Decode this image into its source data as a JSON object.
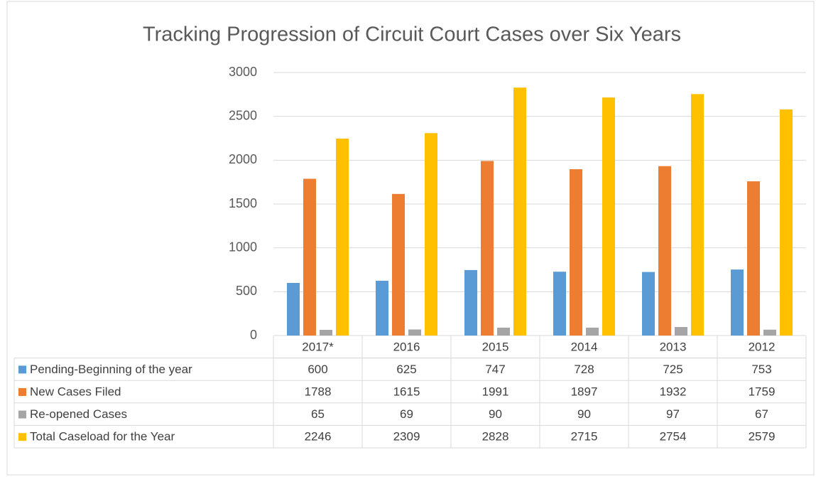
{
  "chart_data": {
    "type": "bar",
    "title": "Tracking Progression of Circuit Court Cases over Six Years",
    "categories": [
      "2017*",
      "2016",
      "2015",
      "2014",
      "2013",
      "2012"
    ],
    "series": [
      {
        "name": "Pending-Beginning of the year",
        "color": "#5b9bd5",
        "values": [
          600,
          625,
          747,
          728,
          725,
          753
        ]
      },
      {
        "name": "New Cases Filed",
        "color": "#ed7d31",
        "values": [
          1788,
          1615,
          1991,
          1897,
          1932,
          1759
        ]
      },
      {
        "name": "Re-opened Cases",
        "color": "#a5a5a5",
        "values": [
          65,
          69,
          90,
          90,
          97,
          67
        ]
      },
      {
        "name": "Total Caseload for the Year",
        "color": "#ffc000",
        "values": [
          2246,
          2309,
          2828,
          2715,
          2754,
          2579
        ]
      }
    ],
    "ylim": [
      0,
      3000
    ],
    "yticks": [
      0,
      500,
      1000,
      1500,
      2000,
      2500,
      3000
    ],
    "grid": true
  }
}
